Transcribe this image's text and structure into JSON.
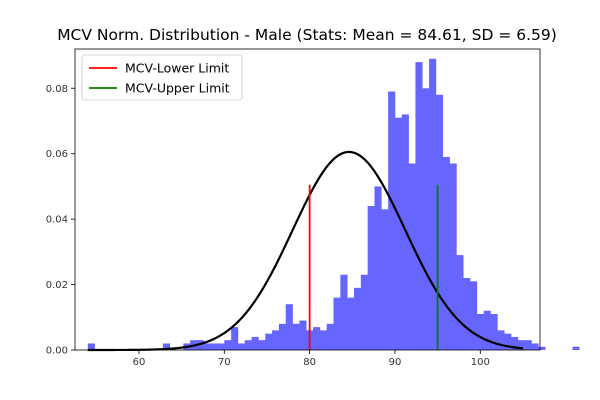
{
  "chart_data": {
    "type": "bar",
    "title": "MCV Norm. Distribution - Male (Stats: Mean = 84.61,  SD = 6.59)",
    "xlabel": "",
    "ylabel": "",
    "xlim": [
      52.5,
      107
    ],
    "ylim": [
      0,
      0.092
    ],
    "xticks": [
      60,
      70,
      80,
      90,
      100
    ],
    "yticks": [
      0.0,
      0.02,
      0.04,
      0.06,
      0.08
    ],
    "xtick_labels": [
      "60",
      "70",
      "80",
      "90",
      "100"
    ],
    "ytick_labels": [
      "0.00",
      "0.02",
      "0.04",
      "0.06",
      "0.08"
    ],
    "grid": false,
    "legend_position": "top-left",
    "histogram": {
      "color": "#6666ff",
      "bin_edges_start": 54,
      "bin_width": 0.8,
      "values": [
        0.002,
        0,
        0,
        0,
        0,
        0,
        0,
        0,
        0,
        0,
        0,
        0.002,
        0,
        0,
        0.002,
        0.003,
        0.003,
        0.002,
        0.002,
        0.002,
        0.003,
        0.007,
        0.002,
        0.003,
        0.004,
        0.003,
        0.005,
        0.006,
        0.008,
        0.014,
        0.008,
        0.009,
        0.006,
        0.007,
        0.006,
        0.008,
        0.016,
        0.023,
        0.016,
        0.019,
        0.023,
        0.044,
        0.05,
        0.043,
        0.079,
        0.071,
        0.072,
        0.057,
        0.088,
        0.08,
        0.089,
        0.078,
        0.059,
        0.057,
        0.029,
        0.022,
        0.021,
        0.011,
        0.012,
        0.011,
        0.006,
        0.005,
        0.004,
        0.003,
        0.003,
        0.002,
        0.001,
        0,
        0,
        0,
        0,
        0.001,
        0,
        0,
        0,
        0,
        0,
        0,
        0,
        0,
        0,
        0,
        0,
        0,
        0,
        0,
        0.002
      ]
    },
    "normal_curve": {
      "color": "#000000",
      "mean": 84.61,
      "sd": 6.59,
      "x_range": [
        54,
        105
      ]
    },
    "reference_lines": [
      {
        "name": "MCV-Lower Limit",
        "x": 80,
        "y_range": [
          0,
          0.0505
        ],
        "color": "#ff0000"
      },
      {
        "name": "MCV-Upper Limit",
        "x": 95,
        "y_range": [
          0,
          0.0505
        ],
        "color": "#008000"
      }
    ],
    "legend": [
      "MCV-Lower Limit",
      "MCV-Upper Limit"
    ]
  }
}
